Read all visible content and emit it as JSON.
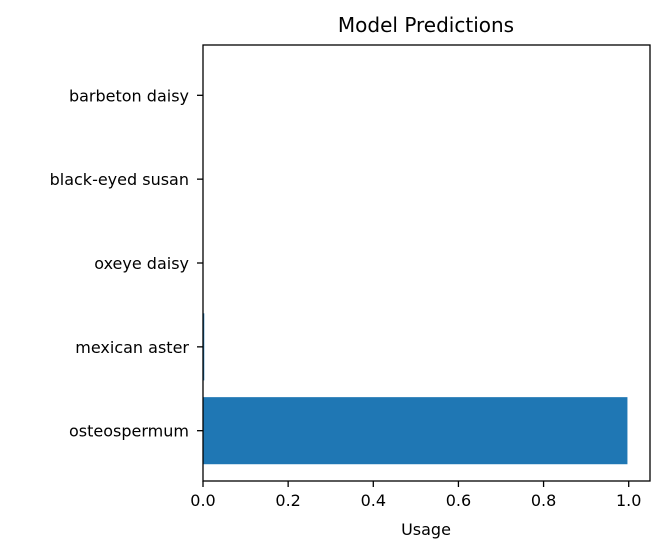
{
  "chart_data": {
    "type": "bar",
    "orientation": "horizontal",
    "title": "Model Predictions",
    "xlabel": "Usage",
    "ylabel": "",
    "categories": [
      "barbeton daisy",
      "black-eyed susan",
      "oxeye daisy",
      "mexican aster",
      "osteospermum"
    ],
    "values": [
      0.0,
      0.0,
      0.0,
      0.003,
      0.997
    ],
    "xlim": [
      0,
      1.05
    ],
    "xticks": [
      0.0,
      0.2,
      0.4,
      0.6,
      0.8,
      1.0
    ],
    "xtick_labels": [
      "0.0",
      "0.2",
      "0.4",
      "0.6",
      "0.8",
      "1.0"
    ],
    "grid": false,
    "legend": false,
    "bar_color": "#1f77b4"
  }
}
